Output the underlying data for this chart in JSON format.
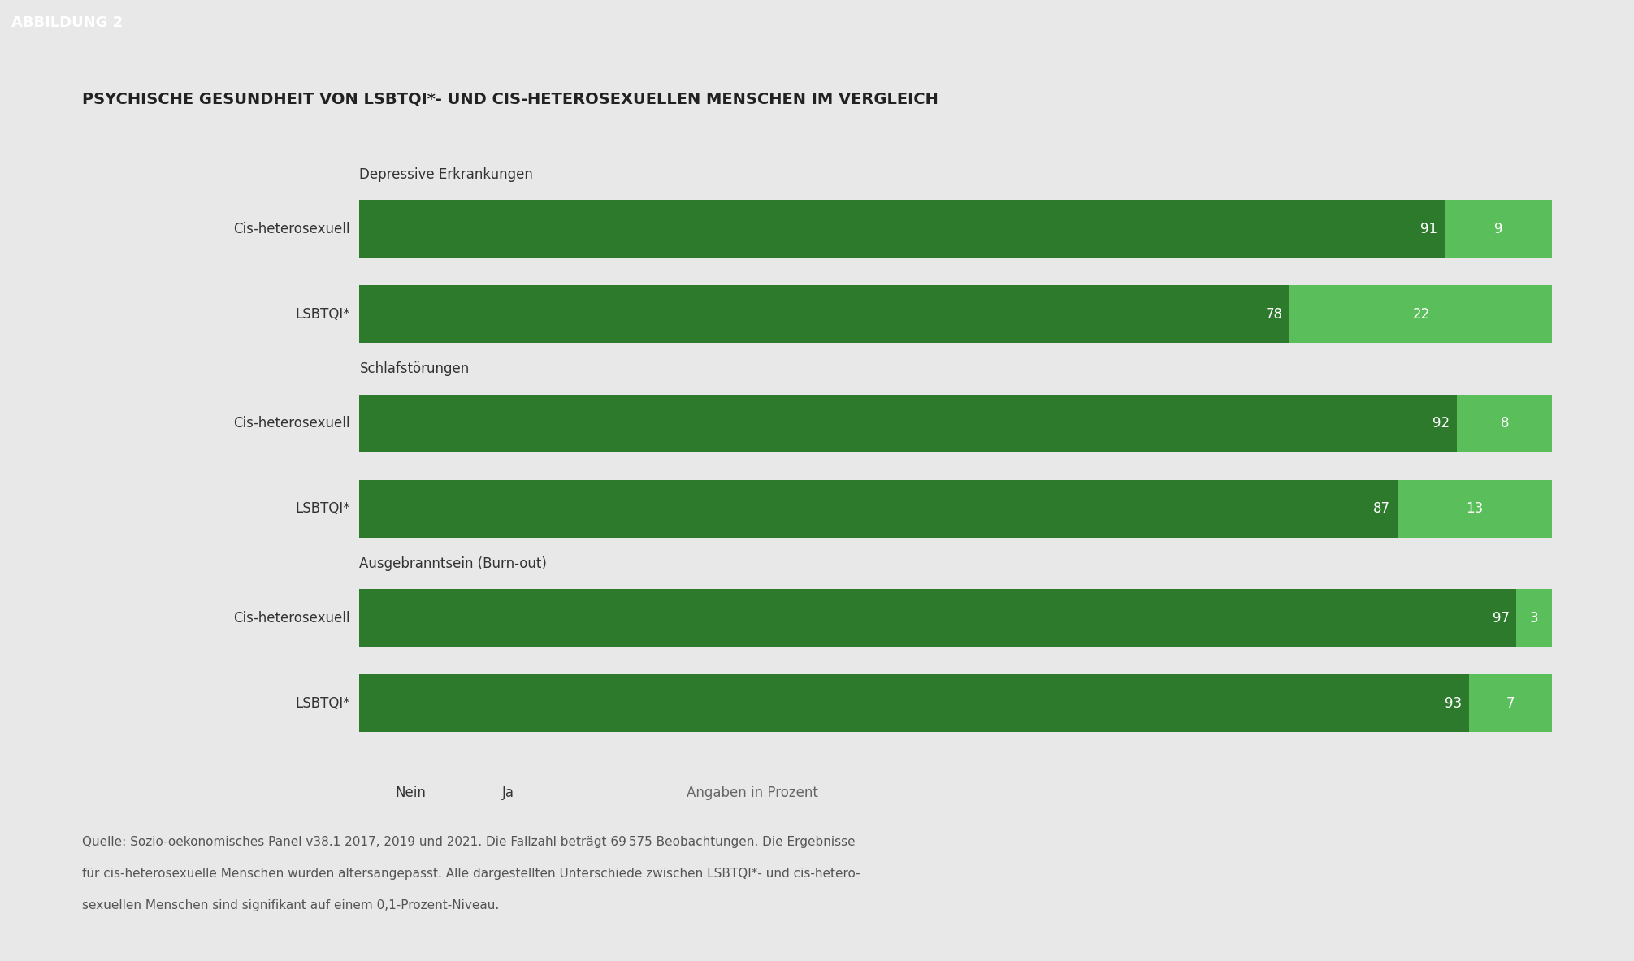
{
  "title": "PSYCHISCHE GESUNDHEIT VON LSBTQI*- UND CIS-HETEROSEXUELLEN MENSCHEN IM VERGLEICH",
  "header_label": "ABBILDUNG 2",
  "header_bg": "#1a1a1a",
  "header_fg": "#ffffff",
  "bg_color": "#e8e8e8",
  "groups": [
    {
      "name": "Depressive Erkrankungen",
      "bars": [
        {
          "label": "Cis-heterosexuell",
          "nein": 91,
          "ja": 9
        },
        {
          "label": "LSBTQI*",
          "nein": 78,
          "ja": 22
        }
      ]
    },
    {
      "name": "Schlafstörungen",
      "bars": [
        {
          "label": "Cis-heterosexuell",
          "nein": 92,
          "ja": 8
        },
        {
          "label": "LSBTQI*",
          "nein": 87,
          "ja": 13
        }
      ]
    },
    {
      "name": "Ausgebranntsein (Burn-out)",
      "bars": [
        {
          "label": "Cis-heterosexuell",
          "nein": 97,
          "ja": 3
        },
        {
          "label": "LSBTQI*",
          "nein": 93,
          "ja": 7
        }
      ]
    }
  ],
  "color_nein": "#2d7a2d",
  "color_ja": "#5abf5a",
  "legend_nein": "Nein",
  "legend_ja": "Ja",
  "note": "Angaben in Prozent",
  "source_line1": "Quelle: Sozio-oekonomisches Panel v38.1 2017, 2019 und 2021. Die Fallzahl beträgt 69 575 Beobachtungen. Die Ergebnisse",
  "source_line2": "für cis-heterosexuelle Menschen wurden altersangepasst. Alle dargestellten Unterschiede zwischen LSBTQI*- und cis-hetero-",
  "source_line3": "sexuellen Menschen sind signifikant auf einem 0,1-Prozent-Niveau.",
  "title_fontsize": 14,
  "label_fontsize": 12,
  "group_fontsize": 12,
  "bar_fontsize": 12,
  "legend_fontsize": 12,
  "source_fontsize": 11,
  "header_fontsize": 13
}
